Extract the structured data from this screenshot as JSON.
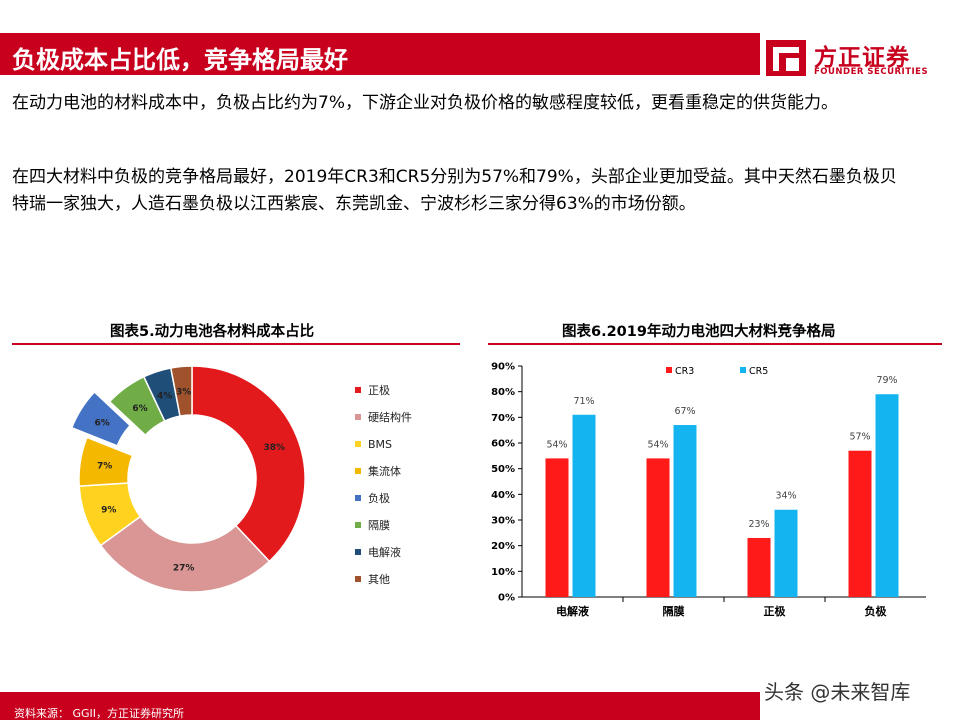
{
  "header": {
    "title": "负极成本占比低，竞争格局最好"
  },
  "logo": {
    "name_cn": "方正证券",
    "name_en": "FOUNDER SECURITIES",
    "color": "#c8001e"
  },
  "body": {
    "paragraph1": "在动力电池的材料成本中，负极占比约为7%，下游企业对负极价格的敏感程度较低，更看重稳定的供货能力。",
    "paragraph2": "在四大材料中负极的竞争格局最好，2019年CR3和CR5分别为57%和79%，头部企业更加受益。其中天然石墨负极贝特瑞一家独大，人造石墨负极以江西紫宸、东莞凯金、宁波杉杉三家分得63%的市场份额。"
  },
  "chart_data": [
    {
      "type": "pie",
      "variant": "donut",
      "title": "图表5.动力电池各材料成本占比",
      "categories": [
        "正极",
        "硬结构件",
        "BMS",
        "集流体",
        "负极",
        "隔膜",
        "电解液",
        "其他"
      ],
      "values": [
        38,
        27,
        9,
        7,
        6,
        6,
        4,
        3
      ],
      "labels": [
        "38%",
        "27%",
        "9%",
        "7%",
        "6%",
        "6%",
        "4%",
        "3%"
      ],
      "colors": [
        "#e31a1c",
        "#d99694",
        "#ffd21f",
        "#f5b800",
        "#4472c4",
        "#70ad47",
        "#1f4e79",
        "#a0522d"
      ],
      "exploded": [
        "负极"
      ],
      "legend": "right"
    },
    {
      "type": "bar",
      "title": "图表6.2019年动力电池四大材料竞争格局",
      "categories": [
        "电解液",
        "隔膜",
        "正极",
        "负极"
      ],
      "series": [
        {
          "name": "CR3",
          "values": [
            54,
            54,
            23,
            57
          ],
          "labels": [
            "54%",
            "54%",
            "23%",
            "57%"
          ],
          "color": "#ff1a1a"
        },
        {
          "name": "CR5",
          "values": [
            71,
            67,
            34,
            79
          ],
          "labels": [
            "71%",
            "67%",
            "34%",
            "79%"
          ],
          "color": "#14b4f0"
        }
      ],
      "yticks": [
        "0%",
        "10%",
        "20%",
        "30%",
        "40%",
        "50%",
        "60%",
        "70%",
        "80%",
        "90%"
      ],
      "ylim": [
        0,
        90
      ],
      "legend": "top",
      "grid": false
    }
  ],
  "footer": {
    "source": "资料来源： GGII，方正证券研究所"
  },
  "watermark": "头条 @未来智库"
}
